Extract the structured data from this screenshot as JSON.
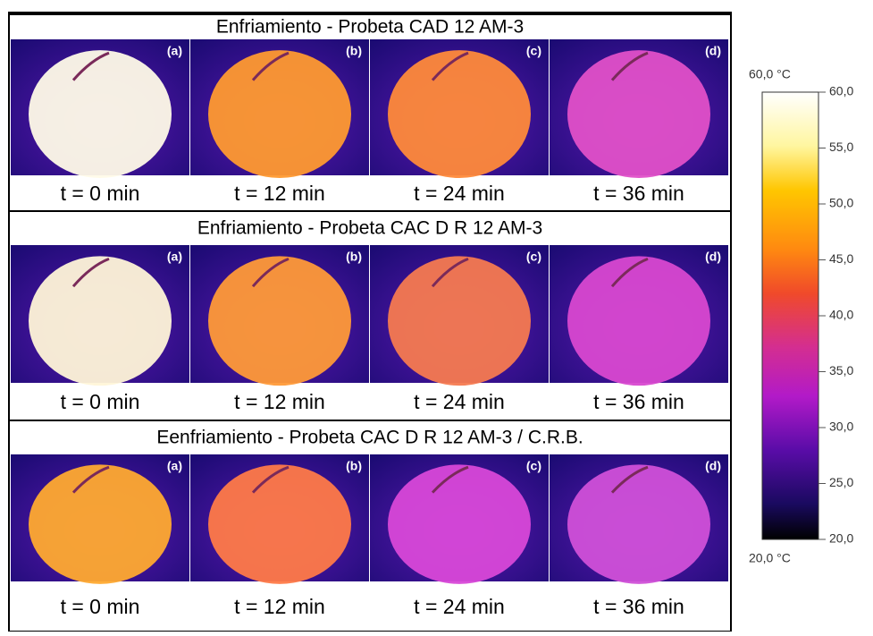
{
  "panels": [
    {
      "title": "Enfriamiento - Probeta CAD 12 AM-3",
      "images": [
        {
          "tag": "(a)",
          "time": "t = 0 min"
        },
        {
          "tag": "(b)",
          "time": "t = 12 min"
        },
        {
          "tag": "(c)",
          "time": "t = 24 min"
        },
        {
          "tag": "(d)",
          "time": "t = 36 min"
        }
      ]
    },
    {
      "title": "Enfriamiento - Probeta CAC D R 12 AM-3",
      "images": [
        {
          "tag": "(a)",
          "time": "t = 0 min"
        },
        {
          "tag": "(b)",
          "time": "t = 12 min"
        },
        {
          "tag": "(c)",
          "time": "t = 24 min"
        },
        {
          "tag": "(d)",
          "time": "t = 36 min"
        }
      ]
    },
    {
      "title": "Eenfriamiento - Probeta CAC D R 12 AM-3 / C.R.B.",
      "images": [
        {
          "tag": "(a)",
          "time": "t = 0 min"
        },
        {
          "tag": "(b)",
          "time": "t = 12 min"
        },
        {
          "tag": "(c)",
          "time": "t = 24 min"
        },
        {
          "tag": "(d)",
          "time": "t = 36 min"
        }
      ]
    }
  ],
  "colorbar": {
    "top_label": "60,0 °C",
    "bottom_label": "20,0 °C",
    "ticks": [
      "60,0",
      "55,0",
      "50,0",
      "45,0",
      "40,0",
      "35,0",
      "30,0",
      "25,0",
      "20,0"
    ]
  }
}
